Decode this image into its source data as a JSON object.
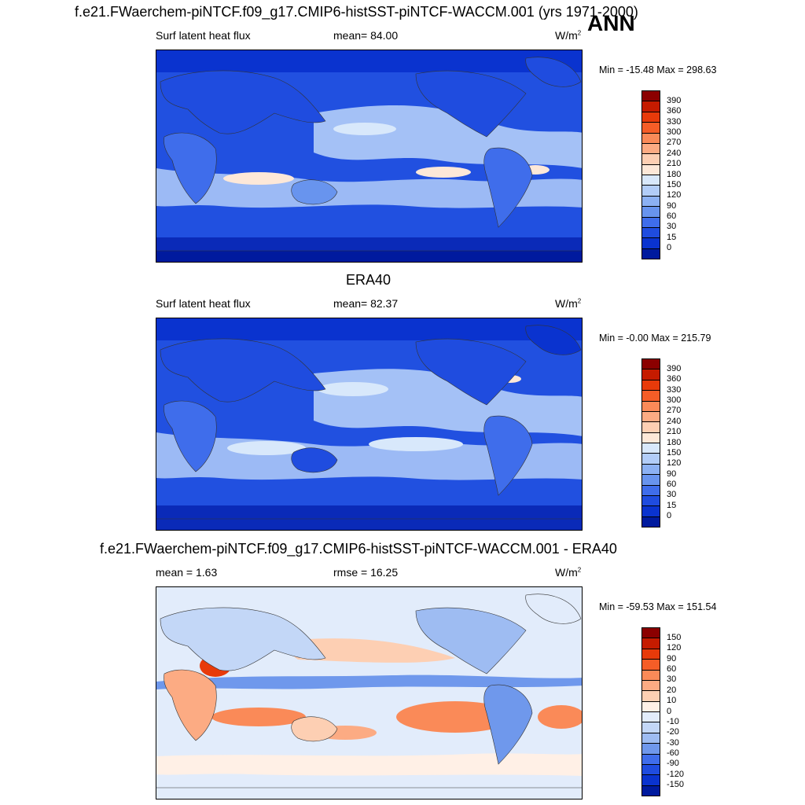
{
  "header": {
    "main_title": "f.e21.FWaerchem-piNTCF.f09_g17.CMIP6-histSST-piNTCF-WACCM.001 (yrs 1971-2000)",
    "season": "ANN"
  },
  "panels": [
    {
      "id": "model",
      "title": "",
      "left_label": "Surf latent heat flux",
      "center_label": "mean=  84.00",
      "units": "W/m",
      "units_sup": "2",
      "minmax": "Min = -15.48 Max = 298.63",
      "colorbar": {
        "labels": [
          "390",
          "360",
          "330",
          "300",
          "270",
          "240",
          "210",
          "180",
          "150",
          "120",
          "90",
          "60",
          "30",
          "15",
          "0"
        ],
        "colors": [
          "#8b0000",
          "#c51b00",
          "#e83a0a",
          "#f55d27",
          "#fa8a58",
          "#fcab83",
          "#fdcfb3",
          "#fde8d8",
          "#d8e8fb",
          "#b2cdf8",
          "#8cb1f3",
          "#6894ee",
          "#3f6deb",
          "#1f4cdf",
          "#0a33cf",
          "#001a9e"
        ]
      }
    },
    {
      "id": "obs",
      "title": "ERA40",
      "left_label": "Surf latent heat flux",
      "center_label": "mean=  82.37",
      "units": "W/m",
      "units_sup": "2",
      "minmax": "Min =  -0.00 Max = 215.79",
      "colorbar": {
        "labels": [
          "390",
          "360",
          "330",
          "300",
          "270",
          "240",
          "210",
          "180",
          "150",
          "120",
          "90",
          "60",
          "30",
          "15",
          "0"
        ],
        "colors": [
          "#8b0000",
          "#c51b00",
          "#e83a0a",
          "#f55d27",
          "#fa8a58",
          "#fcab83",
          "#fdcfb3",
          "#fde8d8",
          "#d8e8fb",
          "#b2cdf8",
          "#8cb1f3",
          "#6894ee",
          "#3f6deb",
          "#1f4cdf",
          "#0a33cf",
          "#001a9e"
        ]
      }
    },
    {
      "id": "diff",
      "title": "f.e21.FWaerchem-piNTCF.f09_g17.CMIP6-histSST-piNTCF-WACCM.001 - ERA40",
      "left_label": "mean =   1.63",
      "center_label": "rmse =  16.25",
      "units": "W/m",
      "units_sup": "2",
      "minmax": "Min = -59.53 Max = 151.54",
      "colorbar": {
        "labels": [
          "150",
          "120",
          "90",
          "60",
          "30",
          "20",
          "10",
          "0",
          "-10",
          "-20",
          "-30",
          "-60",
          "-90",
          "-120",
          "-150"
        ],
        "colors": [
          "#8b0000",
          "#c51b00",
          "#e83a0a",
          "#f55d27",
          "#fa8a58",
          "#fcab83",
          "#fdcfb3",
          "#fff0e6",
          "#e2ecfb",
          "#c3d7f7",
          "#9ebcf2",
          "#6f98ec",
          "#3f6deb",
          "#1f4cdf",
          "#0a33cf",
          "#001a9e"
        ]
      }
    }
  ]
}
